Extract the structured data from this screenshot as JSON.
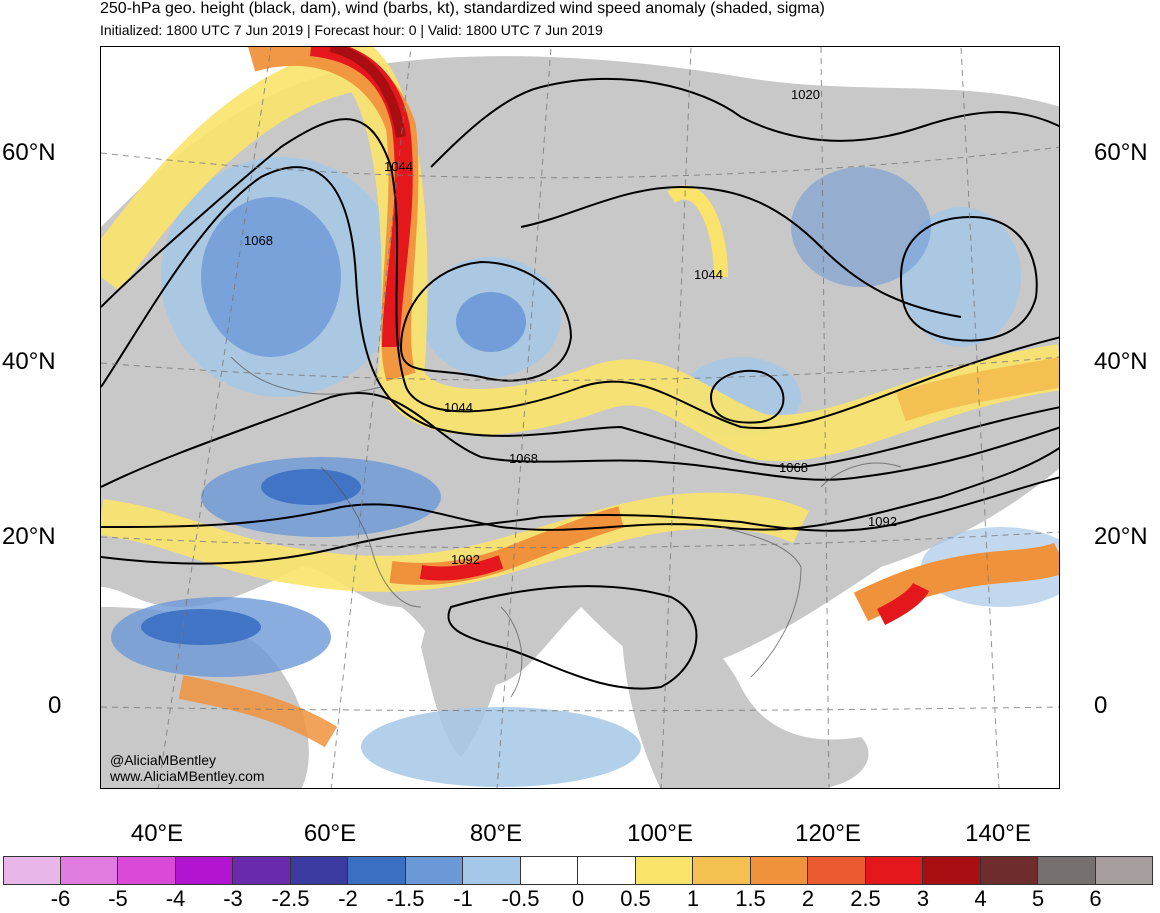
{
  "header": {
    "title": "250-hPa geo. height (black, dam), wind (barbs, kt), standardized wind speed anomaly (shaded, sigma)",
    "subtitle": "Initialized: 1800 UTC 7 Jun 2019 | Forecast hour: 0 | Valid: 1800 UTC 7 Jun 2019"
  },
  "map": {
    "lat_labels_left": [
      "60°N",
      "40°N",
      "20°N",
      "0"
    ],
    "lat_labels_right": [
      "60°N",
      "40°N",
      "20°N",
      "0"
    ],
    "lon_labels": [
      "40°E",
      "60°E",
      "80°E",
      "100°E",
      "120°E",
      "140°E"
    ],
    "contour_labels": [
      "1020",
      "1044",
      "1068",
      "1044",
      "1044",
      "1068",
      "1068",
      "1092",
      "1092"
    ]
  },
  "credits": {
    "handle": "@AliciaMBentley",
    "website": "www.AliciaMBentley.com"
  },
  "colorbar": {
    "ticks": [
      "-6",
      "-5",
      "-4",
      "-3",
      "-2.5",
      "-2",
      "-1.5",
      "-1",
      "-0.5",
      "0",
      "0.5",
      "1",
      "1.5",
      "2",
      "2.5",
      "3",
      "4",
      "5",
      "6"
    ],
    "colors": [
      "#e8b6e8",
      "#e07ce0",
      "#d94ad9",
      "#b314d1",
      "#6a2aad",
      "#3a3aa0",
      "#3b6fc2",
      "#6b98d6",
      "#a6c8e8",
      "#ffffff",
      "#ffffff",
      "#f9e36a",
      "#f4c052",
      "#f0923c",
      "#ec5a30",
      "#e4181c",
      "#a80e12",
      "#6e2c2c",
      "#76706e",
      "#a59e9c"
    ]
  }
}
